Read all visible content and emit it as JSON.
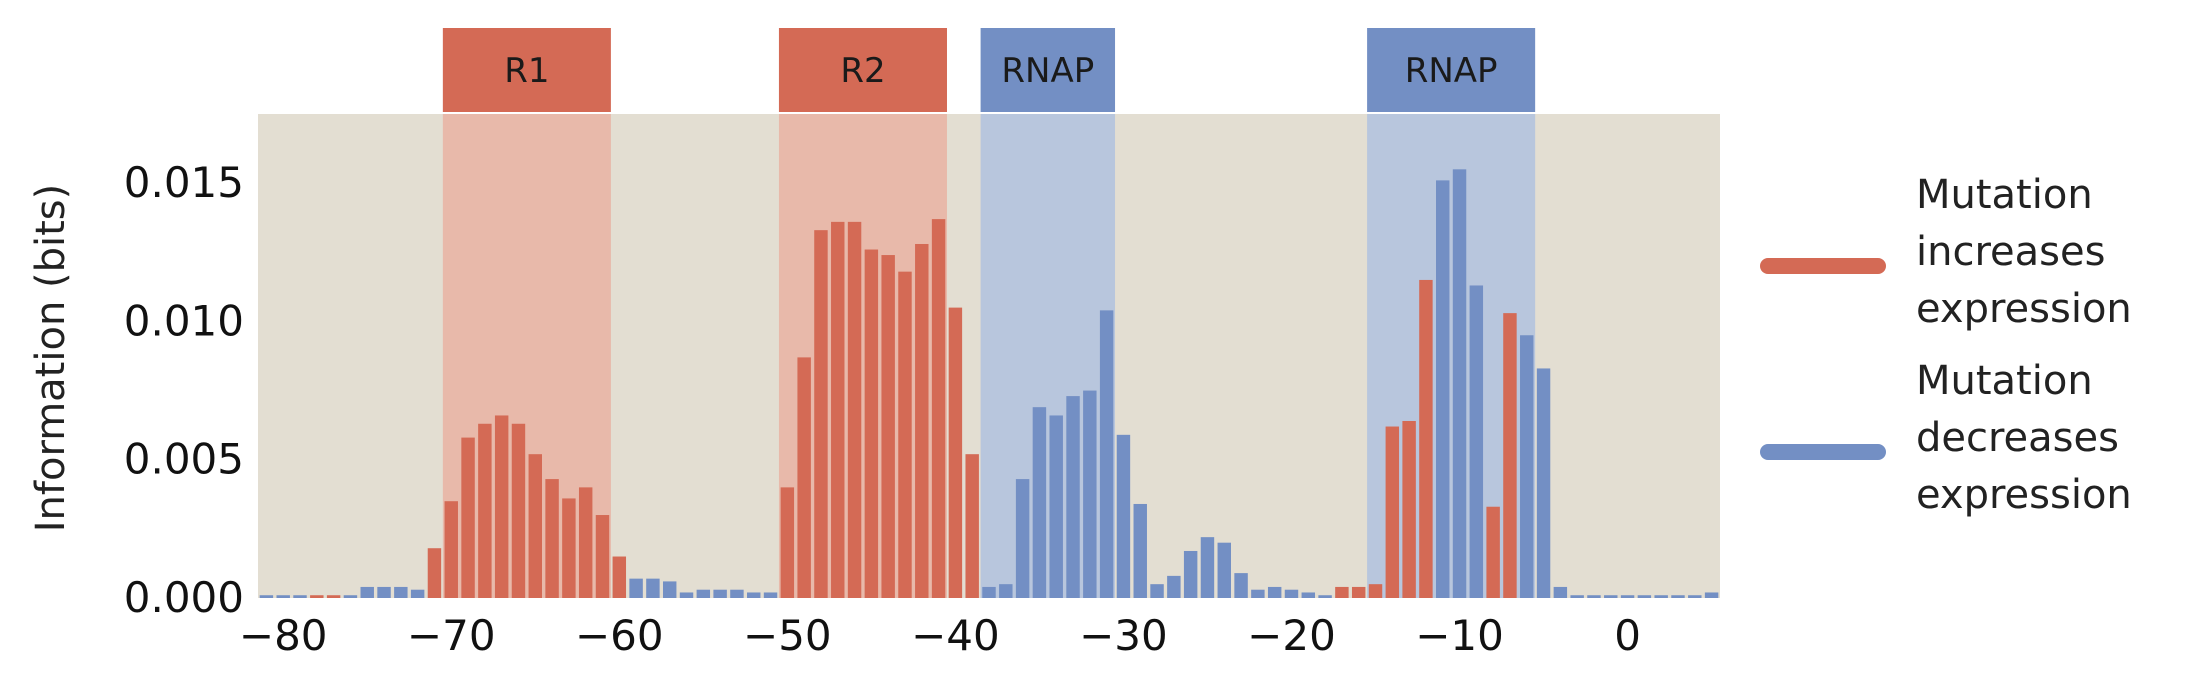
{
  "chart_data": {
    "type": "bar",
    "ylabel": "Information (bits)",
    "xlabel": "",
    "xlim": [
      -81,
      5
    ],
    "ylim": [
      0,
      0.0175
    ],
    "xticks": [
      "−80",
      "−70",
      "−60",
      "−50",
      "−40",
      "−30",
      "−20",
      "−10",
      "0"
    ],
    "xtick_values": [
      -80,
      -70,
      -60,
      -50,
      -40,
      -30,
      -20,
      -10,
      0
    ],
    "yticks": [
      "0.000",
      "0.005",
      "0.010",
      "0.015"
    ],
    "ytick_values": [
      0,
      0.005,
      0.01,
      0.015
    ],
    "grid": false,
    "legend_position": "right",
    "colors": {
      "increase": "#d46a55",
      "decrease": "#738fc4",
      "background": "#e3ded2",
      "increase_region": "#e8b9aa",
      "decrease_region": "#b8c6dd"
    },
    "legend": [
      {
        "series": "increase",
        "lines": [
          "Mutation",
          "increases",
          "expression"
        ]
      },
      {
        "series": "decrease",
        "lines": [
          "Mutation",
          "decreases",
          "expression"
        ]
      }
    ],
    "regions": [
      {
        "label": "R1",
        "start": -70.5,
        "end": -60.5,
        "series": "increase"
      },
      {
        "label": "R2",
        "start": -50.5,
        "end": -40.5,
        "series": "increase"
      },
      {
        "label": "RNAP",
        "start": -38.5,
        "end": -30.5,
        "series": "decrease"
      },
      {
        "label": "RNAP",
        "start": -15.5,
        "end": -5.5,
        "series": "decrease"
      }
    ],
    "bars": [
      {
        "x": -81,
        "value": 0.0001,
        "series": "decrease"
      },
      {
        "x": -80,
        "value": 0.0001,
        "series": "decrease"
      },
      {
        "x": -79,
        "value": 0.0001,
        "series": "decrease"
      },
      {
        "x": -78,
        "value": 0.0001,
        "series": "increase"
      },
      {
        "x": -77,
        "value": 0.0001,
        "series": "increase"
      },
      {
        "x": -76,
        "value": 0.0001,
        "series": "decrease"
      },
      {
        "x": -75,
        "value": 0.0004,
        "series": "decrease"
      },
      {
        "x": -74,
        "value": 0.0004,
        "series": "decrease"
      },
      {
        "x": -73,
        "value": 0.0004,
        "series": "decrease"
      },
      {
        "x": -72,
        "value": 0.0003,
        "series": "decrease"
      },
      {
        "x": -71,
        "value": 0.0018,
        "series": "increase"
      },
      {
        "x": -70,
        "value": 0.0035,
        "series": "increase"
      },
      {
        "x": -69,
        "value": 0.0058,
        "series": "increase"
      },
      {
        "x": -68,
        "value": 0.0063,
        "series": "increase"
      },
      {
        "x": -67,
        "value": 0.0066,
        "series": "increase"
      },
      {
        "x": -66,
        "value": 0.0063,
        "series": "increase"
      },
      {
        "x": -65,
        "value": 0.0052,
        "series": "increase"
      },
      {
        "x": -64,
        "value": 0.0043,
        "series": "increase"
      },
      {
        "x": -63,
        "value": 0.0036,
        "series": "increase"
      },
      {
        "x": -62,
        "value": 0.004,
        "series": "increase"
      },
      {
        "x": -61,
        "value": 0.003,
        "series": "increase"
      },
      {
        "x": -60,
        "value": 0.0015,
        "series": "increase"
      },
      {
        "x": -59,
        "value": 0.0007,
        "series": "decrease"
      },
      {
        "x": -58,
        "value": 0.0007,
        "series": "decrease"
      },
      {
        "x": -57,
        "value": 0.0006,
        "series": "decrease"
      },
      {
        "x": -56,
        "value": 0.0002,
        "series": "decrease"
      },
      {
        "x": -55,
        "value": 0.0003,
        "series": "decrease"
      },
      {
        "x": -54,
        "value": 0.0003,
        "series": "decrease"
      },
      {
        "x": -53,
        "value": 0.0003,
        "series": "decrease"
      },
      {
        "x": -52,
        "value": 0.0002,
        "series": "decrease"
      },
      {
        "x": -51,
        "value": 0.0002,
        "series": "decrease"
      },
      {
        "x": -50,
        "value": 0.004,
        "series": "increase"
      },
      {
        "x": -49,
        "value": 0.0087,
        "series": "increase"
      },
      {
        "x": -48,
        "value": 0.0133,
        "series": "increase"
      },
      {
        "x": -47,
        "value": 0.0136,
        "series": "increase"
      },
      {
        "x": -46,
        "value": 0.0136,
        "series": "increase"
      },
      {
        "x": -45,
        "value": 0.0126,
        "series": "increase"
      },
      {
        "x": -44,
        "value": 0.0124,
        "series": "increase"
      },
      {
        "x": -43,
        "value": 0.0118,
        "series": "increase"
      },
      {
        "x": -42,
        "value": 0.0128,
        "series": "increase"
      },
      {
        "x": -41,
        "value": 0.0137,
        "series": "increase"
      },
      {
        "x": -40,
        "value": 0.0105,
        "series": "increase"
      },
      {
        "x": -39,
        "value": 0.0052,
        "series": "increase"
      },
      {
        "x": -38,
        "value": 0.0004,
        "series": "decrease"
      },
      {
        "x": -37,
        "value": 0.0005,
        "series": "decrease"
      },
      {
        "x": -36,
        "value": 0.0043,
        "series": "decrease"
      },
      {
        "x": -35,
        "value": 0.0069,
        "series": "decrease"
      },
      {
        "x": -34,
        "value": 0.0066,
        "series": "decrease"
      },
      {
        "x": -33,
        "value": 0.0073,
        "series": "decrease"
      },
      {
        "x": -32,
        "value": 0.0075,
        "series": "decrease"
      },
      {
        "x": -31,
        "value": 0.0104,
        "series": "decrease"
      },
      {
        "x": -30,
        "value": 0.0059,
        "series": "decrease"
      },
      {
        "x": -29,
        "value": 0.0034,
        "series": "decrease"
      },
      {
        "x": -28,
        "value": 0.0005,
        "series": "decrease"
      },
      {
        "x": -27,
        "value": 0.0008,
        "series": "decrease"
      },
      {
        "x": -26,
        "value": 0.0017,
        "series": "decrease"
      },
      {
        "x": -25,
        "value": 0.0022,
        "series": "decrease"
      },
      {
        "x": -24,
        "value": 0.002,
        "series": "decrease"
      },
      {
        "x": -23,
        "value": 0.0009,
        "series": "decrease"
      },
      {
        "x": -22,
        "value": 0.0003,
        "series": "decrease"
      },
      {
        "x": -21,
        "value": 0.0004,
        "series": "decrease"
      },
      {
        "x": -20,
        "value": 0.0003,
        "series": "decrease"
      },
      {
        "x": -19,
        "value": 0.0002,
        "series": "decrease"
      },
      {
        "x": -18,
        "value": 0.0001,
        "series": "decrease"
      },
      {
        "x": -17,
        "value": 0.0004,
        "series": "increase"
      },
      {
        "x": -16,
        "value": 0.0004,
        "series": "increase"
      },
      {
        "x": -15,
        "value": 0.0005,
        "series": "increase"
      },
      {
        "x": -14,
        "value": 0.0062,
        "series": "increase"
      },
      {
        "x": -13,
        "value": 0.0064,
        "series": "increase"
      },
      {
        "x": -12,
        "value": 0.0115,
        "series": "increase"
      },
      {
        "x": -11,
        "value": 0.0151,
        "series": "decrease"
      },
      {
        "x": -10,
        "value": 0.0155,
        "series": "decrease"
      },
      {
        "x": -9,
        "value": 0.0113,
        "series": "decrease"
      },
      {
        "x": -8,
        "value": 0.0033,
        "series": "increase"
      },
      {
        "x": -7,
        "value": 0.0103,
        "series": "increase"
      },
      {
        "x": -6,
        "value": 0.0095,
        "series": "decrease"
      },
      {
        "x": -5,
        "value": 0.0083,
        "series": "decrease"
      },
      {
        "x": -4,
        "value": 0.0004,
        "series": "decrease"
      },
      {
        "x": -3,
        "value": 0.0001,
        "series": "decrease"
      },
      {
        "x": -2,
        "value": 0.0001,
        "series": "decrease"
      },
      {
        "x": -1,
        "value": 0.0001,
        "series": "decrease"
      },
      {
        "x": 0,
        "value": 0.0001,
        "series": "decrease"
      },
      {
        "x": 1,
        "value": 0.0001,
        "series": "decrease"
      },
      {
        "x": 2,
        "value": 0.0001,
        "series": "decrease"
      },
      {
        "x": 3,
        "value": 0.0001,
        "series": "decrease"
      },
      {
        "x": 4,
        "value": 0.0001,
        "series": "decrease"
      },
      {
        "x": 5,
        "value": 0.0002,
        "series": "decrease"
      }
    ]
  }
}
